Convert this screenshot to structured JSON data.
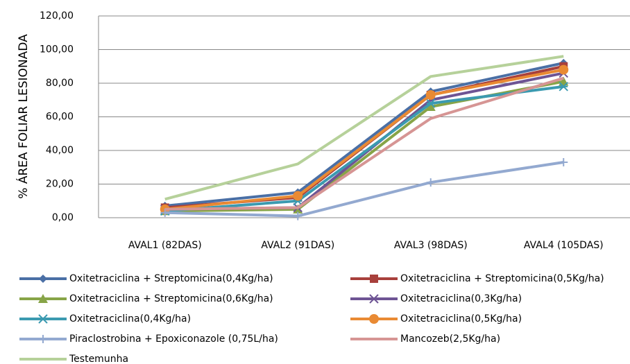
{
  "chart_data": {
    "type": "line",
    "y_label": "% ÁREA FOLIAR LESIONADA",
    "categories": [
      "AVAL1 (82DAS)",
      "AVAL2 (91DAS)",
      "AVAL3 (98DAS)",
      "AVAL4 (105DAS)"
    ],
    "ylim": [
      0,
      120
    ],
    "yticks": [
      {
        "value": 0,
        "label": "0,00"
      },
      {
        "value": 20,
        "label": "20,00"
      },
      {
        "value": 40,
        "label": "40,00"
      },
      {
        "value": 60,
        "label": "60,00"
      },
      {
        "value": 80,
        "label": "80,00"
      },
      {
        "value": 100,
        "label": "100,00"
      },
      {
        "value": 120,
        "label": "120,00"
      }
    ],
    "grid": true,
    "legend": "bottom",
    "series": [
      {
        "name": "Oxitetraciclina + Streptomicina(0,4Kg/ha)",
        "color": "#4a6fa5",
        "marker": "diamond",
        "values": [
          7,
          15,
          75,
          92
        ]
      },
      {
        "name": "Oxitetraciclina + Streptomicina(0,5Kg/ha)",
        "color": "#a8403c",
        "marker": "square",
        "values": [
          6,
          12,
          73,
          90
        ]
      },
      {
        "name": "Oxitetraciclina + Streptomicina(0,6Kg/ha)",
        "color": "#87a447",
        "marker": "triangle",
        "values": [
          4,
          5,
          66,
          81
        ]
      },
      {
        "name": "Oxitetraciclina(0,3Kg/ha)",
        "color": "#6e5494",
        "marker": "x",
        "values": [
          5,
          6,
          70,
          86
        ]
      },
      {
        "name": "Oxitetraciclina(0,4Kg/ha)",
        "color": "#3b9ab0",
        "marker": "star",
        "values": [
          4,
          10,
          68,
          78
        ]
      },
      {
        "name": "Oxitetraciclina(0,5Kg/ha)",
        "color": "#e98a33",
        "marker": "circle",
        "values": [
          5,
          13,
          73,
          88
        ]
      },
      {
        "name": "Piraclostrobina + Epoxiconazole (0,75L/ha)",
        "color": "#93a9d0",
        "marker": "plus",
        "values": [
          3,
          1,
          21,
          33
        ]
      },
      {
        "name": "Mancozeb(2,5Kg/ha)",
        "color": "#d69594",
        "marker": "none",
        "values": [
          5,
          6,
          59,
          83
        ]
      },
      {
        "name": "Testemunha",
        "color": "#b6d19a",
        "marker": "none",
        "values": [
          11,
          32,
          84,
          96
        ]
      }
    ]
  }
}
